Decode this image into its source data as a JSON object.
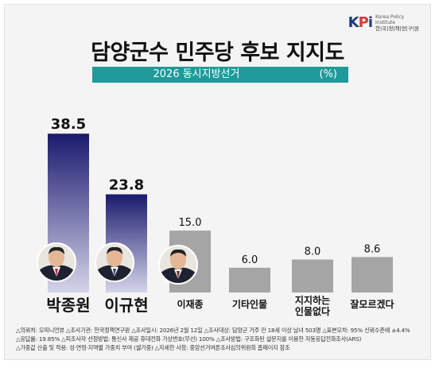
{
  "logo": {
    "mark": "KPi",
    "name_en_1": "Korea Policy",
    "name_en_2": "Institute",
    "name_ko": "한|국|정|책|연|구|원"
  },
  "chart_data": {
    "type": "bar",
    "title": "담양군수 민주당 후보 지지도",
    "subtitle": "2026 동시지방선거",
    "unit": "(%)",
    "categories": [
      "박종원",
      "이규현",
      "이재종",
      "기타인물",
      "지지하는\n인물없다",
      "잘모르겠다"
    ],
    "values": [
      38.5,
      23.8,
      15.0,
      6.0,
      8.0,
      8.6
    ],
    "value_labels": [
      "38.5",
      "23.8",
      "15.0",
      "6.0",
      "8.0",
      "8.6"
    ],
    "highlighted": [
      true,
      true,
      false,
      false,
      false,
      false
    ],
    "with_photo": [
      true,
      true,
      true,
      false,
      false,
      false
    ],
    "colors": {
      "highlight_top": "#1a1a6e",
      "highlight_bottom": "#d4d4ea",
      "normal": "#a5a5a5",
      "subtitle_bar": "#1e9a9a"
    },
    "ylim": [
      0,
      40
    ],
    "grid": false
  },
  "footnotes": [
    "△의뢰처: 오피니언뷰 △조사기관: 한국정책연구원 △조사일시: 2026년 2월 12일 △조사대상: 담양군 거주 만 18세 이상 남녀 503명 △표본오차: 95% 신뢰수준에 ±4.4%",
    "△응답률: 19.85% △피조사자 선정방법: 통신사 제공 휴대전화 가상번호(무선) 100% △조사방법: 구조화된 설문지를 이용한 자동응답전화조사(ARS)",
    "△가중값 산출 및 적용: 성·연령·지역별 가중치 부여 (셀가중) △자세한 사항: 중앙선거여론조사심의위원회 홈페이지 참조"
  ]
}
